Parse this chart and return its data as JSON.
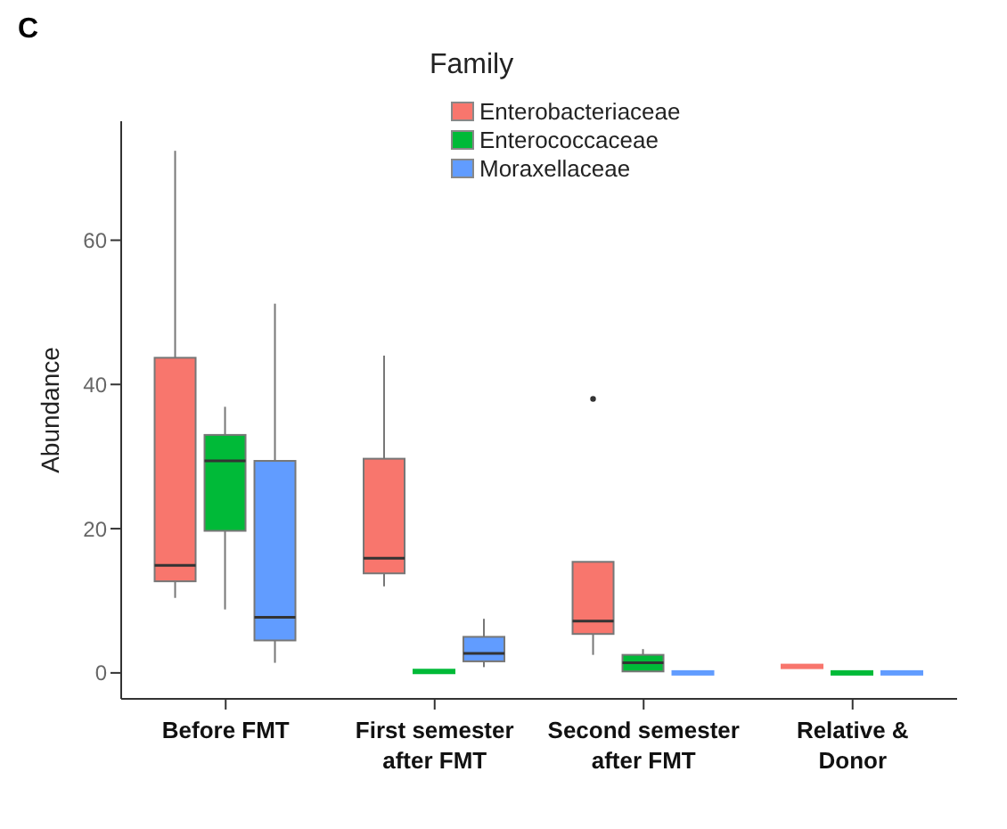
{
  "chart_data": {
    "type": "box",
    "legend_title": "Family",
    "ylabel": "Abundance",
    "annotations": [
      "C"
    ],
    "categories": [
      "Before FMT",
      "First semester after FMT",
      "Second semester after FMT",
      "Relative & Donor"
    ],
    "ylim": [
      -3.6,
      76.5
    ],
    "yticks": [
      0,
      20,
      40,
      60
    ],
    "legend": "top",
    "series": [
      {
        "name": "Enterobacteriaceae",
        "color": "#f8766d",
        "boxes": [
          {
            "low": 10.4,
            "q1": 12.7,
            "median": 14.9,
            "q3": 43.7,
            "high": 72.4
          },
          {
            "low": 12,
            "q1": 13.8,
            "median": 15.9,
            "q3": 29.7,
            "high": 44
          },
          {
            "low": 2.5,
            "q1": 5.4,
            "median": 7.2,
            "q3": 15.4,
            "high": 15.4,
            "outliers": [
              38
            ]
          },
          {
            "low": 0.9,
            "q1": 0.9,
            "median": 0.9,
            "q3": 0.9,
            "high": 0.9
          }
        ]
      },
      {
        "name": "Enterococcaceae",
        "color": "#00ba38",
        "boxes": [
          {
            "low": 8.8,
            "q1": 19.7,
            "median": 29.4,
            "q3": 33,
            "high": 36.9
          },
          {
            "low": 0.2,
            "q1": 0.2,
            "median": 0.2,
            "q3": 0.2,
            "high": 0.2
          },
          {
            "low": 0.2,
            "q1": 0.2,
            "median": 1.4,
            "q3": 2.5,
            "high": 3.3
          },
          {
            "low": 0,
            "q1": 0,
            "median": 0,
            "q3": 0,
            "high": 0
          }
        ]
      },
      {
        "name": "Moraxellaceae",
        "color": "#619cff",
        "boxes": [
          {
            "low": 1.4,
            "q1": 4.5,
            "median": 7.7,
            "q3": 29.4,
            "high": 51.2
          },
          {
            "low": 0.8,
            "q1": 1.6,
            "median": 2.7,
            "q3": 5,
            "high": 7.5
          },
          {
            "low": 0,
            "q1": 0,
            "median": 0,
            "q3": 0,
            "high": 0
          },
          {
            "low": 0,
            "q1": 0,
            "median": 0,
            "q3": 0,
            "high": 0
          }
        ]
      }
    ]
  }
}
